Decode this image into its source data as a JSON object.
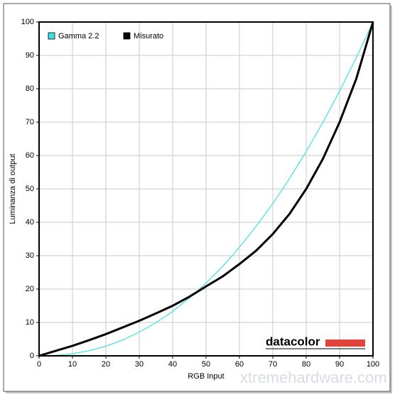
{
  "chart_data": {
    "type": "line",
    "x_label": "RGB Input",
    "y_label": "Luminanza di output",
    "x": [
      0,
      5,
      10,
      15,
      20,
      25,
      30,
      35,
      40,
      45,
      50,
      55,
      60,
      65,
      70,
      75,
      80,
      85,
      90,
      95,
      100
    ],
    "series": [
      {
        "name": "Gamma 2.2",
        "color": "#40e0e0",
        "values": [
          0,
          0.14,
          0.63,
          1.54,
          2.9,
          4.7,
          7.1,
          9.9,
          13.3,
          17.3,
          21.8,
          26.8,
          32.5,
          38.8,
          45.6,
          53.1,
          61.2,
          69.9,
          79.3,
          89.3,
          100
        ]
      },
      {
        "name": "Misurato",
        "color": "#000000",
        "values": [
          0,
          1.5,
          3,
          4.7,
          6.5,
          8.5,
          10.5,
          12.7,
          15,
          17.7,
          20.8,
          23.8,
          27.5,
          31.5,
          36.5,
          42.5,
          50,
          59,
          70,
          83,
          100
        ]
      }
    ],
    "xlim": [
      0,
      100
    ],
    "ylim": [
      0,
      100
    ],
    "xticks": [
      0,
      10,
      20,
      30,
      40,
      50,
      60,
      70,
      80,
      90,
      100
    ],
    "yticks": [
      0,
      10,
      20,
      30,
      40,
      50,
      60,
      70,
      80,
      90,
      100
    ],
    "grid": true,
    "legend": "top-left",
    "annotations": [
      "datacolor",
      "xtremehardware.com"
    ]
  }
}
